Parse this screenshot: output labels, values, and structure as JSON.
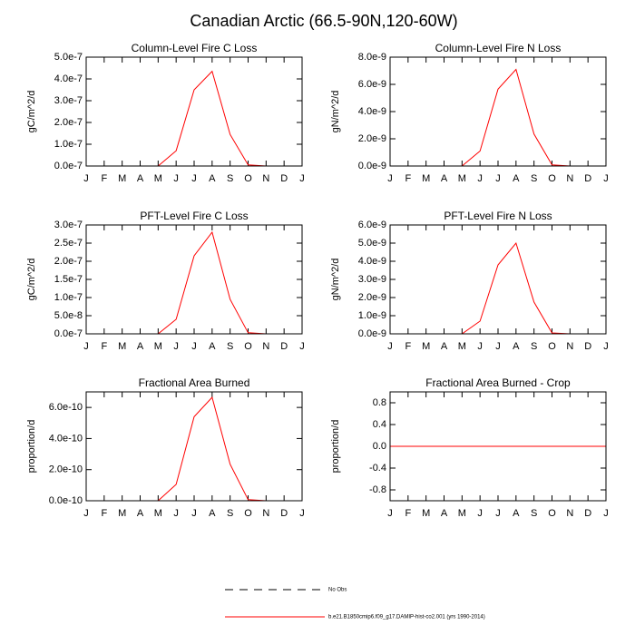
{
  "title": "Canadian Arctic (66.5-90N,120-60W)",
  "legend": [
    {
      "label": "No Obs",
      "color": "#000000",
      "dash": true
    },
    {
      "label": "b.e21.B1850cmip6.f09_g17.DAMIP-hist-co2.001 (yrs 1990-2014)",
      "color": "#ff0000",
      "dash": false
    }
  ],
  "chart_data": [
    {
      "type": "line",
      "title": "Column-Level Fire C Loss",
      "ylabel": "gC/m^2/d",
      "categories": [
        "J",
        "F",
        "M",
        "A",
        "M",
        "J",
        "J",
        "A",
        "S",
        "O",
        "N",
        "D",
        "J"
      ],
      "series": [
        {
          "color": "#ff0000",
          "values": [
            0,
            0,
            0,
            0,
            0,
            7e-08,
            3.5e-07,
            4.35e-07,
            1.45e-07,
            5e-09,
            0,
            0,
            0
          ]
        }
      ],
      "ylim": [
        0,
        5e-07
      ],
      "yticks": [
        {
          "value": 0,
          "label": "0.0e-7"
        },
        {
          "value": 1e-07,
          "label": "1.0e-7"
        },
        {
          "value": 2e-07,
          "label": "2.0e-7"
        },
        {
          "value": 3e-07,
          "label": "3.0e-7"
        },
        {
          "value": 4e-07,
          "label": "4.0e-7"
        },
        {
          "value": 5e-07,
          "label": "5.0e-7"
        }
      ]
    },
    {
      "type": "line",
      "title": "Column-Level Fire N Loss",
      "ylabel": "gN/m^2/d",
      "categories": [
        "J",
        "F",
        "M",
        "A",
        "M",
        "J",
        "J",
        "A",
        "S",
        "O",
        "N",
        "D",
        "J"
      ],
      "series": [
        {
          "color": "#ff0000",
          "values": [
            0,
            0,
            0,
            0,
            0,
            1.1e-09,
            5.65e-09,
            7.1e-09,
            2.35e-09,
            8e-11,
            0,
            0,
            0
          ]
        }
      ],
      "ylim": [
        0,
        8e-09
      ],
      "yticks": [
        {
          "value": 0,
          "label": "0.0e-9"
        },
        {
          "value": 2e-09,
          "label": "2.0e-9"
        },
        {
          "value": 4e-09,
          "label": "4.0e-9"
        },
        {
          "value": 6e-09,
          "label": "6.0e-9"
        },
        {
          "value": 8e-09,
          "label": "8.0e-9"
        }
      ]
    },
    {
      "type": "line",
      "title": "PFT-Level Fire C Loss",
      "ylabel": "gC/m^2/d",
      "categories": [
        "J",
        "F",
        "M",
        "A",
        "M",
        "J",
        "J",
        "A",
        "S",
        "O",
        "N",
        "D",
        "J"
      ],
      "series": [
        {
          "color": "#ff0000",
          "values": [
            0,
            0,
            0,
            0,
            0,
            4e-08,
            2.15e-07,
            2.8e-07,
            9.5e-08,
            3e-09,
            0,
            0,
            0
          ]
        }
      ],
      "ylim": [
        0,
        3e-07
      ],
      "yticks": [
        {
          "value": 0,
          "label": "0.0e-7"
        },
        {
          "value": 5e-08,
          "label": "5.0e-8"
        },
        {
          "value": 1e-07,
          "label": "1.0e-7"
        },
        {
          "value": 1.5e-07,
          "label": "1.5e-7"
        },
        {
          "value": 2e-07,
          "label": "2.0e-7"
        },
        {
          "value": 2.5e-07,
          "label": "2.5e-7"
        },
        {
          "value": 3e-07,
          "label": "3.0e-7"
        }
      ]
    },
    {
      "type": "line",
      "title": "PFT-Level Fire N Loss",
      "ylabel": "gN/m^2/d",
      "categories": [
        "J",
        "F",
        "M",
        "A",
        "M",
        "J",
        "J",
        "A",
        "S",
        "O",
        "N",
        "D",
        "J"
      ],
      "series": [
        {
          "color": "#ff0000",
          "values": [
            0,
            0,
            0,
            0,
            0,
            7e-10,
            3.8e-09,
            5e-09,
            1.75e-09,
            5e-11,
            0,
            0,
            0
          ]
        }
      ],
      "ylim": [
        0,
        6e-09
      ],
      "yticks": [
        {
          "value": 0,
          "label": "0.0e-9"
        },
        {
          "value": 1e-09,
          "label": "1.0e-9"
        },
        {
          "value": 2e-09,
          "label": "2.0e-9"
        },
        {
          "value": 3e-09,
          "label": "3.0e-9"
        },
        {
          "value": 4e-09,
          "label": "4.0e-9"
        },
        {
          "value": 5e-09,
          "label": "5.0e-9"
        },
        {
          "value": 6e-09,
          "label": "6.0e-9"
        }
      ]
    },
    {
      "type": "line",
      "title": "Fractional Area Burned",
      "ylabel": "proportion/d",
      "categories": [
        "J",
        "F",
        "M",
        "A",
        "M",
        "J",
        "J",
        "A",
        "S",
        "O",
        "N",
        "D",
        "J"
      ],
      "series": [
        {
          "color": "#ff0000",
          "values": [
            0,
            0,
            0,
            0,
            0,
            1.05e-10,
            5.4e-10,
            6.65e-10,
            2.35e-10,
            7e-12,
            0,
            0,
            0
          ]
        }
      ],
      "ylim": [
        0,
        7e-10
      ],
      "yticks": [
        {
          "value": 0,
          "label": "0.0e-10"
        },
        {
          "value": 2e-10,
          "label": "2.0e-10"
        },
        {
          "value": 4e-10,
          "label": "4.0e-10"
        },
        {
          "value": 6e-10,
          "label": "6.0e-10"
        }
      ]
    },
    {
      "type": "line",
      "title": "Fractional Area Burned - Crop",
      "ylabel": "proportion/d",
      "categories": [
        "J",
        "F",
        "M",
        "A",
        "M",
        "J",
        "J",
        "A",
        "S",
        "O",
        "N",
        "D",
        "J"
      ],
      "series": [
        {
          "color": "#ff0000",
          "values": [
            0,
            0,
            0,
            0,
            0,
            0,
            0,
            0,
            0,
            0,
            0,
            0,
            0
          ]
        }
      ],
      "ylim": [
        -1,
        1
      ],
      "yticks": [
        -0.8,
        -0.4,
        {
          "value": 0,
          "label": "0.0"
        },
        0.4,
        0.8
      ]
    }
  ]
}
